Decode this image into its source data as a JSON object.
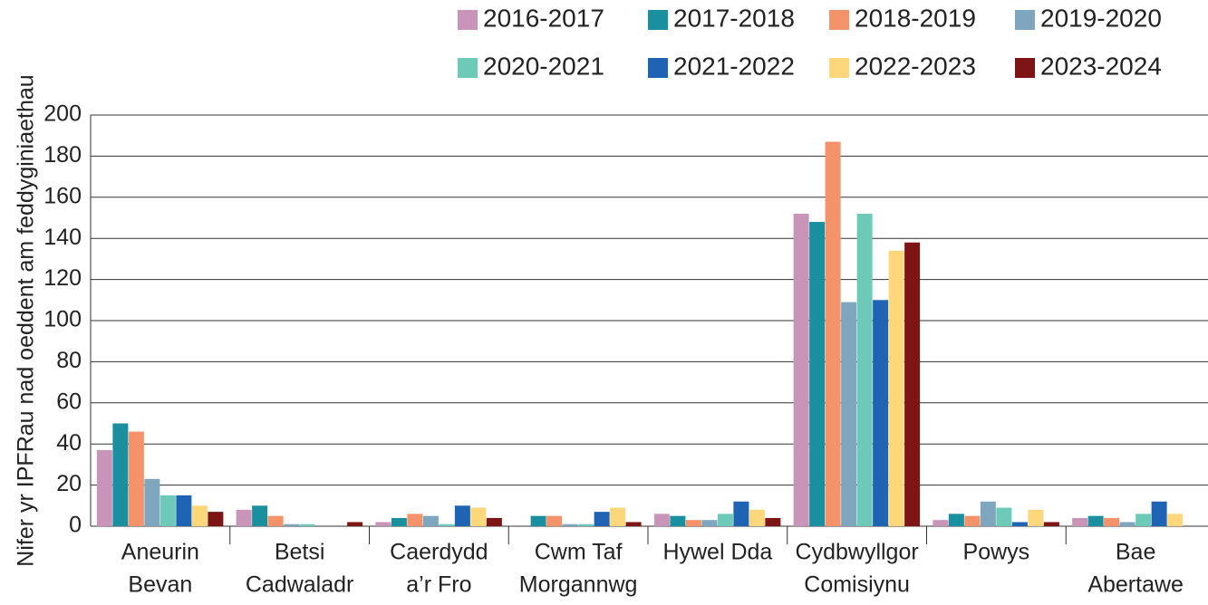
{
  "chart_data": {
    "type": "bar",
    "y_label": "Nifer yr IPFRau nad oeddent am feddyginiaethau",
    "categories": [
      [
        "Aneurin",
        "Bevan"
      ],
      [
        "Betsi",
        "Cadwaladr"
      ],
      [
        "Caerdydd",
        "a’r Fro"
      ],
      [
        "Cwm Taf",
        "Morgannwg"
      ],
      [
        "Hywel Dda"
      ],
      [
        "Cydbwyllgor",
        "Comisiynu"
      ],
      [
        "Powys"
      ],
      [
        "Bae",
        "Abertawe"
      ]
    ],
    "series": [
      {
        "name": "2016-2017",
        "color": "#c894b8",
        "values": [
          37,
          8,
          2,
          0,
          6,
          152,
          3,
          4
        ]
      },
      {
        "name": "2017-2018",
        "color": "#1a8fa0",
        "values": [
          50,
          10,
          4,
          5,
          5,
          148,
          6,
          5
        ]
      },
      {
        "name": "2018-2019",
        "color": "#f4926a",
        "values": [
          46,
          5,
          6,
          5,
          3,
          187,
          5,
          4
        ]
      },
      {
        "name": "2019-2020",
        "color": "#7fa6bf",
        "values": [
          23,
          1,
          5,
          1,
          3,
          109,
          12,
          2
        ]
      },
      {
        "name": "2020-2021",
        "color": "#6ecab8",
        "values": [
          15,
          1,
          1,
          1,
          6,
          152,
          9,
          6
        ]
      },
      {
        "name": "2021-2022",
        "color": "#1f64b4",
        "values": [
          15,
          0,
          10,
          7,
          12,
          110,
          2,
          12
        ]
      },
      {
        "name": "2022-2023",
        "color": "#fdd77a",
        "values": [
          10,
          0,
          9,
          9,
          8,
          134,
          8,
          6
        ]
      },
      {
        "name": "2023-2024",
        "color": "#7d1416",
        "values": [
          7,
          2,
          4,
          2,
          4,
          138,
          2,
          0
        ]
      }
    ],
    "ylim": [
      0,
      200
    ],
    "yticks": [
      0,
      20,
      40,
      60,
      80,
      100,
      120,
      140,
      160,
      180,
      200
    ],
    "grid": true
  }
}
